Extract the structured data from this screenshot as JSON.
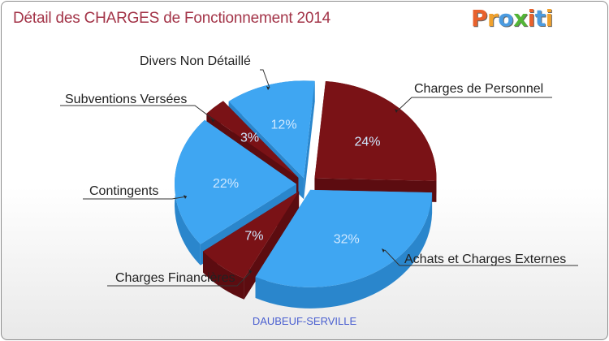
{
  "title": "Détail des CHARGES de Fonctionnement 2014",
  "logo": {
    "text": "Proxiti",
    "colors": [
      "#e8612c",
      "#f0a12d",
      "#4b9be0",
      "#53b536",
      "#e8612c",
      "#4b9be0",
      "#f0a12d"
    ]
  },
  "place": "DAUBEUF-SERVILLE",
  "chart_data": {
    "type": "pie",
    "title": "Détail des CHARGES de Fonctionnement 2014",
    "slices": [
      {
        "label": "Charges de Personnel",
        "value": 24,
        "pct_label": "24%",
        "color": "#7a1216",
        "side_color": "#5c0c10"
      },
      {
        "label": "Achats et Charges Externes",
        "value": 32,
        "pct_label": "32%",
        "color": "#3fa6f2",
        "side_color": "#2a86cc"
      },
      {
        "label": "Charges Financières",
        "value": 7,
        "pct_label": "7%",
        "color": "#7a1216",
        "side_color": "#5c0c10"
      },
      {
        "label": "Contingents",
        "value": 22,
        "pct_label": "22%",
        "color": "#3fa6f2",
        "side_color": "#2a86cc"
      },
      {
        "label": "Subventions Versées",
        "value": 3,
        "pct_label": "3%",
        "color": "#7a1216",
        "side_color": "#5c0c10"
      },
      {
        "label": "Divers Non Détaillé",
        "value": 12,
        "pct_label": "12%",
        "color": "#3fa6f2",
        "side_color": "#2a86cc"
      }
    ]
  }
}
